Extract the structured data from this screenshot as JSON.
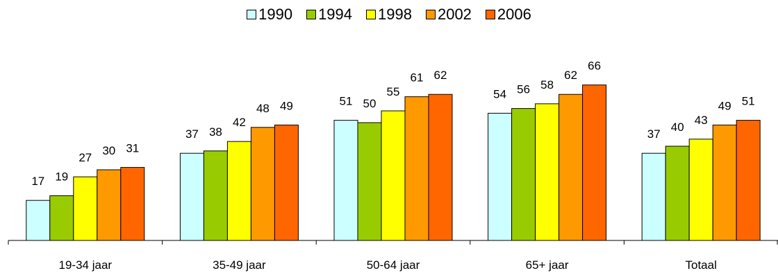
{
  "chart_data": {
    "type": "bar",
    "categories": [
      "19-34 jaar",
      "35-49 jaar",
      "50-64 jaar",
      "65+ jaar",
      "Totaal"
    ],
    "series": [
      {
        "name": "1990",
        "color": "#ccffff",
        "values": [
          17,
          37,
          51,
          54,
          37
        ]
      },
      {
        "name": "1994",
        "color": "#99cc00",
        "values": [
          19,
          38,
          50,
          56,
          40
        ]
      },
      {
        "name": "1998",
        "color": "#ffff00",
        "values": [
          27,
          42,
          55,
          58,
          43
        ]
      },
      {
        "name": "2002",
        "color": "#ff9900",
        "values": [
          30,
          48,
          61,
          62,
          49
        ]
      },
      {
        "name": "2006",
        "color": "#ff6600",
        "values": [
          31,
          49,
          62,
          66,
          51
        ]
      }
    ],
    "ylim": [
      0,
      70
    ],
    "legend_position": "top-center",
    "grid": false,
    "data_labels": true
  }
}
